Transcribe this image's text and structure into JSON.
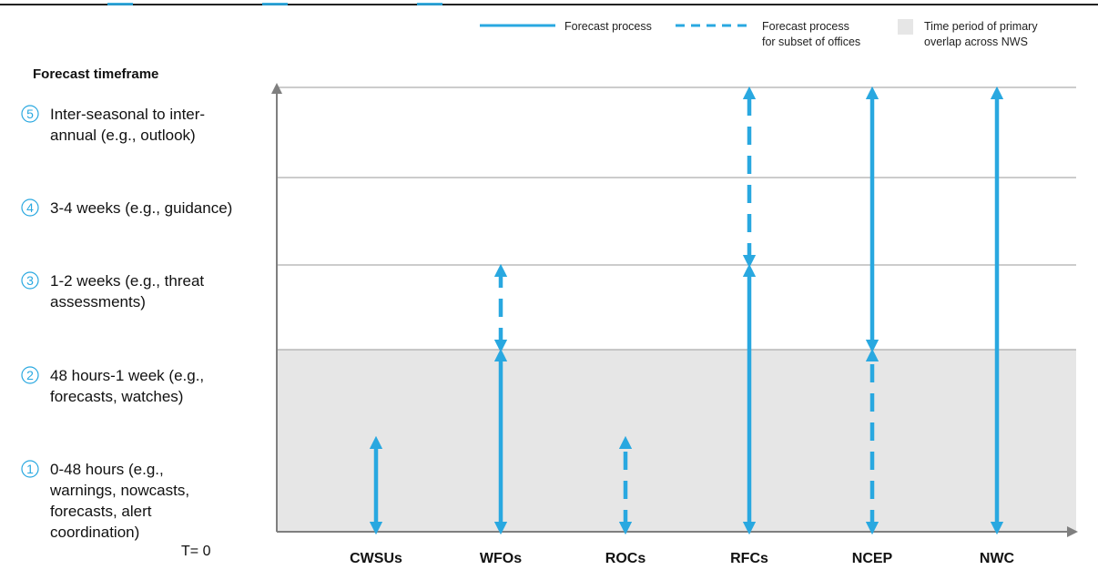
{
  "legend": {
    "solid_label": "Forecast process",
    "dashed_label_line1": "Forecast process",
    "dashed_label_line2": "for subset of offices",
    "shade_label_line1": "Time period of primary",
    "shade_label_line2": "overlap across NWS"
  },
  "heading": "Forecast timeframe",
  "levels": [
    {
      "num": "1",
      "lines": [
        "0-48 hours (e.g.,",
        "warnings, nowcasts,",
        "forecasts, alert",
        "coordination)"
      ]
    },
    {
      "num": "2",
      "lines": [
        "48 hours-1 week (e.g.,",
        "forecasts, watches)"
      ]
    },
    {
      "num": "3",
      "lines": [
        "1-2 weeks (e.g., threat",
        "assessments)"
      ]
    },
    {
      "num": "4",
      "lines": [
        "3-4 weeks (e.g., guidance)"
      ]
    },
    {
      "num": "5",
      "lines": [
        "Inter-seasonal to inter-",
        "annual (e.g., outlook)"
      ]
    }
  ],
  "t0_label": "T= 0",
  "offices": [
    "CWSUs",
    "WFOs",
    "ROCs",
    "RFCs",
    "NCEP",
    "NWC"
  ],
  "colors": {
    "arrow": "#29a8e0",
    "shade": "#e6e6e6",
    "axis": "#7f7f7f",
    "gridline": "#9a9a9a"
  },
  "chart_data": {
    "type": "range-arrows",
    "y_levels": [
      "1",
      "2",
      "3",
      "4",
      "5"
    ],
    "shaded_levels": [
      "1",
      "2"
    ],
    "processes": [
      {
        "office": "CWSUs",
        "segments": [
          {
            "style": "solid",
            "from": 0,
            "to": 1
          }
        ]
      },
      {
        "office": "WFOs",
        "segments": [
          {
            "style": "solid",
            "from": 0,
            "to": 2
          },
          {
            "style": "dashed",
            "from": 2,
            "to": 3
          }
        ]
      },
      {
        "office": "ROCs",
        "segments": [
          {
            "style": "dashed",
            "from": 0,
            "to": 1
          }
        ]
      },
      {
        "office": "RFCs",
        "segments": [
          {
            "style": "solid",
            "from": 0,
            "to": 3
          },
          {
            "style": "dashed",
            "from": 3,
            "to": 5
          }
        ]
      },
      {
        "office": "NCEP",
        "segments": [
          {
            "style": "dashed",
            "from": 0,
            "to": 2
          },
          {
            "style": "solid",
            "from": 2,
            "to": 5
          }
        ]
      },
      {
        "office": "NWC",
        "segments": [
          {
            "style": "solid",
            "from": 0,
            "to": 5
          }
        ]
      }
    ]
  }
}
